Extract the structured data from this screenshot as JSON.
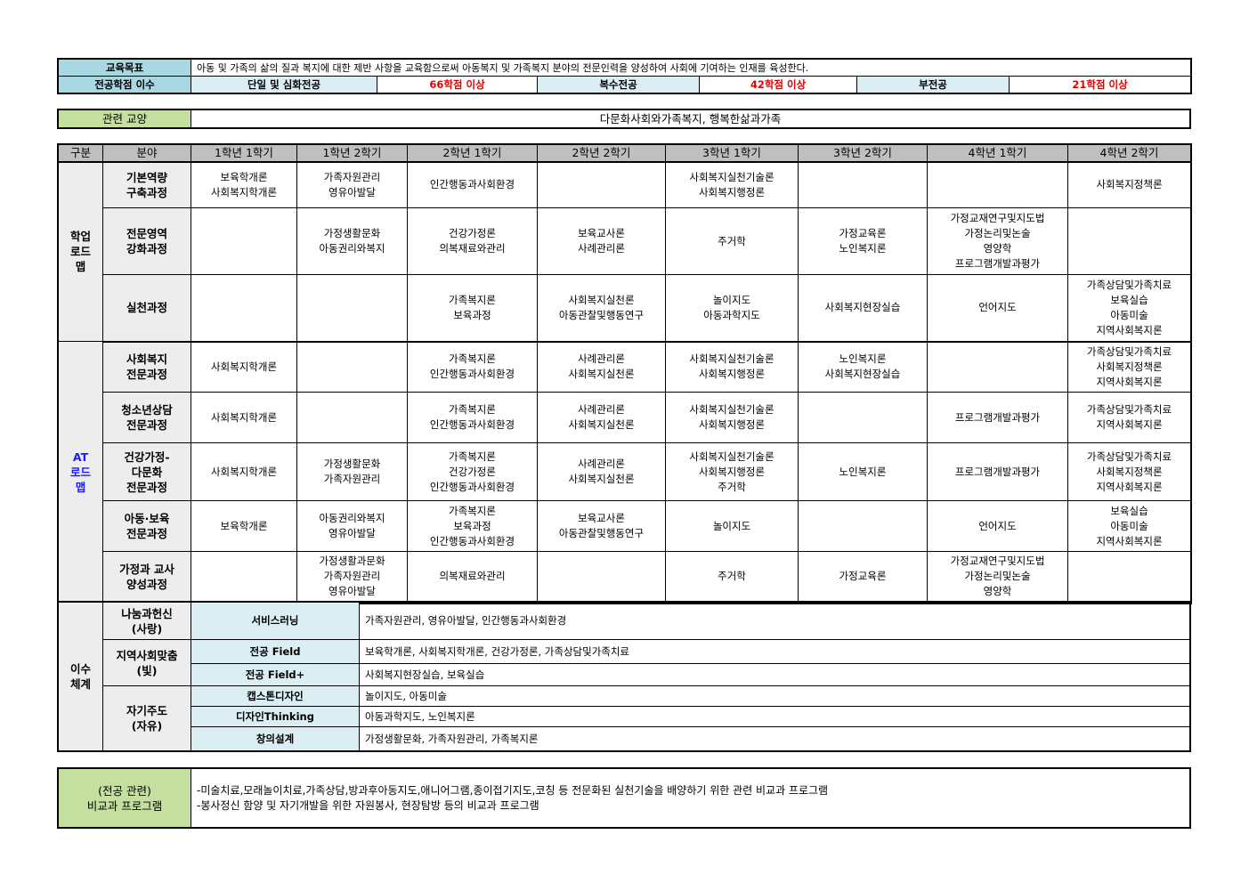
{
  "goal": {
    "label": "교육목표",
    "text": "아동 및 가족의 삶의 질과 복지에 대한 제반 사항을 교육함으로써 아동복지 및 가족복지 분야의 전문인력을 양성하여 사회에 기여하는 인재를 육성한다."
  },
  "credits": {
    "label": "전공학점 이수",
    "items": [
      {
        "name": "단일 및 심화전공",
        "value": "66학점 이상"
      },
      {
        "name": "복수전공",
        "value": "42학점 이상"
      },
      {
        "name": "부전공",
        "value": "21학점 이상"
      }
    ]
  },
  "liberal": {
    "label": "관련 교양",
    "text": "다문화사회와가족복지, 행복한삶과가족"
  },
  "roadmap": {
    "headers": [
      "구분",
      "분야",
      "1학년 1학기",
      "1학년 2학기",
      "2학년 1학기",
      "2학년 2학기",
      "3학년 1학기",
      "3학년 2학기",
      "4학년 1학기",
      "4학년 2학기"
    ],
    "groups": [
      {
        "label": [
          "학업",
          "로드",
          "맵"
        ],
        "label_color": "#000000",
        "rows": [
          {
            "field": [
              "기본역량",
              "구축과정"
            ],
            "cells": [
              [
                "보육학개론",
                "사회복지학개론"
              ],
              [
                "가족자원관리",
                "영유아발달"
              ],
              [
                "인간행동과사회환경"
              ],
              [],
              [
                "사회복지실천기술론",
                "사회복지행정론"
              ],
              [],
              [],
              [
                "사회복지정책론"
              ]
            ]
          },
          {
            "field": [
              "전문영역",
              "강화과정"
            ],
            "cells": [
              [],
              [
                "가정생활문화",
                "아동권리와복지"
              ],
              [
                "건강가정론",
                "의복재료와관리"
              ],
              [
                "보육교사론",
                "사례관리론"
              ],
              [
                "주거학"
              ],
              [
                "가정교육론",
                "노인복지론"
              ],
              [
                "가정교재연구및지도법",
                "가정논리및논술",
                "영양학",
                "프로그램개발과평가"
              ],
              []
            ]
          },
          {
            "field": [
              "실천과정"
            ],
            "cells": [
              [],
              [],
              [
                "가족복지론",
                "보육과정"
              ],
              [
                "사회복지실천론",
                "아동관찰및행동연구"
              ],
              [
                "놀이지도",
                "아동과학지도"
              ],
              [
                "사회복지현장실습"
              ],
              [
                "언어지도"
              ],
              [
                "가족상담및가족치료",
                "보육실습",
                "아동미술",
                "지역사회복지론"
              ]
            ]
          }
        ]
      },
      {
        "label": [
          "AT",
          "로드",
          "맵"
        ],
        "label_color": "#1a1aff",
        "rows": [
          {
            "field": [
              "사회복지",
              "전문과정"
            ],
            "cells": [
              [
                "사회복지학개론"
              ],
              [],
              [
                "가족복지론",
                "인간행동과사회환경"
              ],
              [
                "사례관리론",
                "사회복지실천론"
              ],
              [
                "사회복지실천기술론",
                "사회복지행정론"
              ],
              [
                "노인복지론",
                "사회복지현장실습"
              ],
              [],
              [
                "가족상담및가족치료",
                "사회복지정책론",
                "지역사회복지론"
              ]
            ]
          },
          {
            "field": [
              "청소년상담",
              "전문과정"
            ],
            "cells": [
              [
                "사회복지학개론"
              ],
              [],
              [
                "가족복지론",
                "인간행동과사회환경"
              ],
              [
                "사례관리론",
                "사회복지실천론"
              ],
              [
                "사회복지실천기술론",
                "사회복지행정론"
              ],
              [],
              [
                "프로그램개발과평가"
              ],
              [
                "가족상담및가족치료",
                "지역사회복지론"
              ]
            ]
          },
          {
            "field": [
              "건강가정-",
              "다문화",
              "전문과정"
            ],
            "cells": [
              [
                "사회복지학개론"
              ],
              [
                "가정생활문화",
                "가족자원관리"
              ],
              [
                "가족복지론",
                "건강가정론",
                "인간행동과사회환경"
              ],
              [
                "사례관리론",
                "사회복지실천론"
              ],
              [
                "사회복지실천기술론",
                "사회복지행정론",
                "주거학"
              ],
              [
                "노인복지론"
              ],
              [
                "프로그램개발과평가"
              ],
              [
                "가족상담및가족치료",
                "사회복지정책론",
                "지역사회복지론"
              ]
            ]
          },
          {
            "field": [
              "아동·보육",
              "전문과정"
            ],
            "cells": [
              [
                "보육학개론"
              ],
              [
                "아동권리와복지",
                "영유아발달"
              ],
              [
                "가족복지론",
                "보육과정",
                "인간행동과사회환경"
              ],
              [
                "보육교사론",
                "아동관찰및행동연구"
              ],
              [
                "놀이지도"
              ],
              [],
              [
                "언어지도"
              ],
              [
                "보육실습",
                "아동미술",
                "지역사회복지론"
              ]
            ]
          },
          {
            "field": [
              "가정과 교사",
              "양성과정"
            ],
            "cells": [
              [],
              [
                "가정생활과문화",
                "가족자원관리",
                "영유아발달"
              ],
              [
                "의복재료와관리"
              ],
              [],
              [
                "주거학"
              ],
              [
                "가정교육론"
              ],
              [
                "가정교재연구및지도법",
                "가정논리및논술",
                "영양학"
              ],
              []
            ]
          }
        ]
      }
    ]
  },
  "system": {
    "label": [
      "이수",
      "체계"
    ],
    "categories": [
      {
        "name": [
          "나눔과헌신",
          "(사랑)"
        ],
        "items": [
          {
            "type": "서비스러닝",
            "courses": "가족자원관리, 영유아발달, 인간행동과사회환경"
          }
        ]
      },
      {
        "name": [
          "지역사회맞춤",
          "(빛)"
        ],
        "items": [
          {
            "type": "전공 Field",
            "courses": "보육학개론, 사회복지학개론, 건강가정론, 가족상담및가족치료"
          },
          {
            "type": "전공 Field+",
            "courses": "사회복지현장실습, 보육실습"
          }
        ]
      },
      {
        "name": [
          "자기주도",
          "(자유)"
        ],
        "items": [
          {
            "type": "캡스톤디자인",
            "courses": "놀이지도, 아동미술"
          },
          {
            "type": "디자인Thinking",
            "courses": "아동과학지도, 노인복지론"
          },
          {
            "type": "창의설계",
            "courses": "가정생활문화, 가족자원관리, 가족복지론"
          }
        ]
      }
    ]
  },
  "extracurricular": {
    "label": [
      "(전공 관련)",
      "비교과 프로그램"
    ],
    "lines": [
      "-미술치료,모래놀이치료,가족상담,방과후아동지도,애니어그램,종이접기지도,코칭 등 전문화된 실천기술을 배양하기 위한 관련 비교과 프로그램",
      "-봉사정신 함양 및 자기개발을 위한 자원봉사, 현장탐방 등의 비교과 프로그램"
    ]
  },
  "colors": {
    "label_blue": "#a8d8e2",
    "light_blue": "#dbeef3",
    "green": "#c4dfa0",
    "header_gray": "#bfbfbf",
    "credit_red": "#e00000",
    "at_blue": "#1a1aff"
  }
}
